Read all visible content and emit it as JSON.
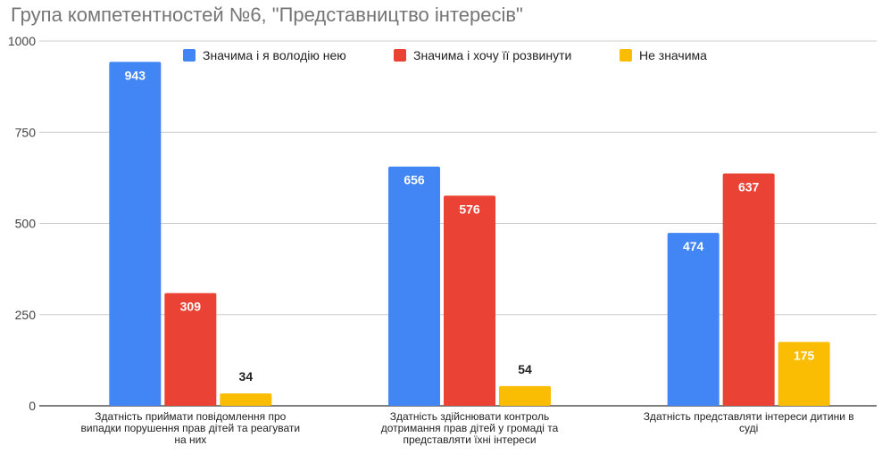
{
  "chart_data": {
    "type": "bar",
    "title": "Група компетентностей №6, \"Представництво інтересів\"",
    "categories": [
      [
        "Здатність приймати повідомлення про",
        "випадки порушення прав дітей та реагувати",
        "на них"
      ],
      [
        "Здатність здійснювати контроль",
        "дотримання прав дітей у громаді та",
        "представляти їхні інтереси"
      ],
      [
        "Здатність представляти інтереси дитини в",
        "суді"
      ]
    ],
    "series": [
      {
        "name": "Значима і я володію нею",
        "values": [
          943,
          656,
          474
        ],
        "color": "#4285f4"
      },
      {
        "name": "Значима і хочу її розвинути",
        "values": [
          309,
          576,
          637
        ],
        "color": "#ea4335"
      },
      {
        "name": "Не значима",
        "values": [
          34,
          54,
          175
        ],
        "color": "#fbbc04"
      }
    ],
    "yticks": [
      "0",
      "250",
      "500",
      "750",
      "1000"
    ],
    "ylim": [
      0,
      1000
    ],
    "grid": true,
    "legend_position": "top-right"
  }
}
